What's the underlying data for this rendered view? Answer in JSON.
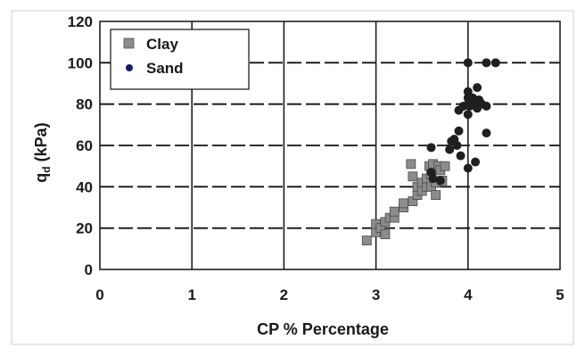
{
  "chart_data": {
    "type": "scatter",
    "x_range": [
      0,
      5
    ],
    "y_range": [
      0,
      120
    ],
    "x_ticks": [
      "0",
      "1",
      "2",
      "3",
      "4",
      "5"
    ],
    "y_ticks": [
      "0",
      "20",
      "40",
      "60",
      "80",
      "100",
      "120"
    ],
    "xlabel": "CP % Percentage",
    "ylabel_main": "q",
    "ylabel_sub": "d",
    "ylabel_unit": " (kPa)",
    "grid": "dashed-horizontal-solid-vertical",
    "legend_position": "top-left",
    "series": [
      {
        "name": "Clay",
        "marker": "square",
        "color": "#8c8c8c",
        "points": [
          [
            2.9,
            14
          ],
          [
            3.0,
            18
          ],
          [
            3.0,
            22
          ],
          [
            3.05,
            20
          ],
          [
            3.1,
            17
          ],
          [
            3.1,
            23
          ],
          [
            3.15,
            25
          ],
          [
            3.2,
            25
          ],
          [
            3.2,
            28
          ],
          [
            3.3,
            30
          ],
          [
            3.3,
            32
          ],
          [
            3.38,
            51
          ],
          [
            3.4,
            33
          ],
          [
            3.4,
            45
          ],
          [
            3.45,
            36
          ],
          [
            3.45,
            40
          ],
          [
            3.5,
            38
          ],
          [
            3.5,
            42
          ],
          [
            3.55,
            40
          ],
          [
            3.55,
            44
          ],
          [
            3.58,
            50
          ],
          [
            3.6,
            40
          ],
          [
            3.6,
            46
          ],
          [
            3.62,
            51
          ],
          [
            3.65,
            36
          ],
          [
            3.65,
            42
          ],
          [
            3.68,
            50
          ],
          [
            3.7,
            48
          ],
          [
            3.72,
            43
          ],
          [
            3.75,
            50
          ]
        ]
      },
      {
        "name": "Sand",
        "marker": "circle",
        "color": "#1f1f1f",
        "points": [
          [
            3.6,
            59
          ],
          [
            3.6,
            47
          ],
          [
            3.62,
            44
          ],
          [
            3.7,
            43
          ],
          [
            3.8,
            58
          ],
          [
            3.82,
            62
          ],
          [
            3.85,
            63
          ],
          [
            3.88,
            60
          ],
          [
            3.9,
            67
          ],
          [
            3.9,
            77
          ],
          [
            3.92,
            55
          ],
          [
            3.95,
            79
          ],
          [
            4.0,
            49
          ],
          [
            4.0,
            75
          ],
          [
            4.0,
            80
          ],
          [
            4.0,
            83
          ],
          [
            4.0,
            86
          ],
          [
            4.02,
            79
          ],
          [
            4.05,
            81
          ],
          [
            4.08,
            52
          ],
          [
            4.1,
            78
          ],
          [
            4.1,
            88
          ],
          [
            4.12,
            82
          ],
          [
            4.15,
            80
          ],
          [
            4.2,
            66
          ],
          [
            4.2,
            79
          ],
          [
            4.0,
            100
          ],
          [
            4.2,
            100
          ],
          [
            4.3,
            100
          ],
          [
            4.05,
            83
          ]
        ]
      }
    ]
  }
}
